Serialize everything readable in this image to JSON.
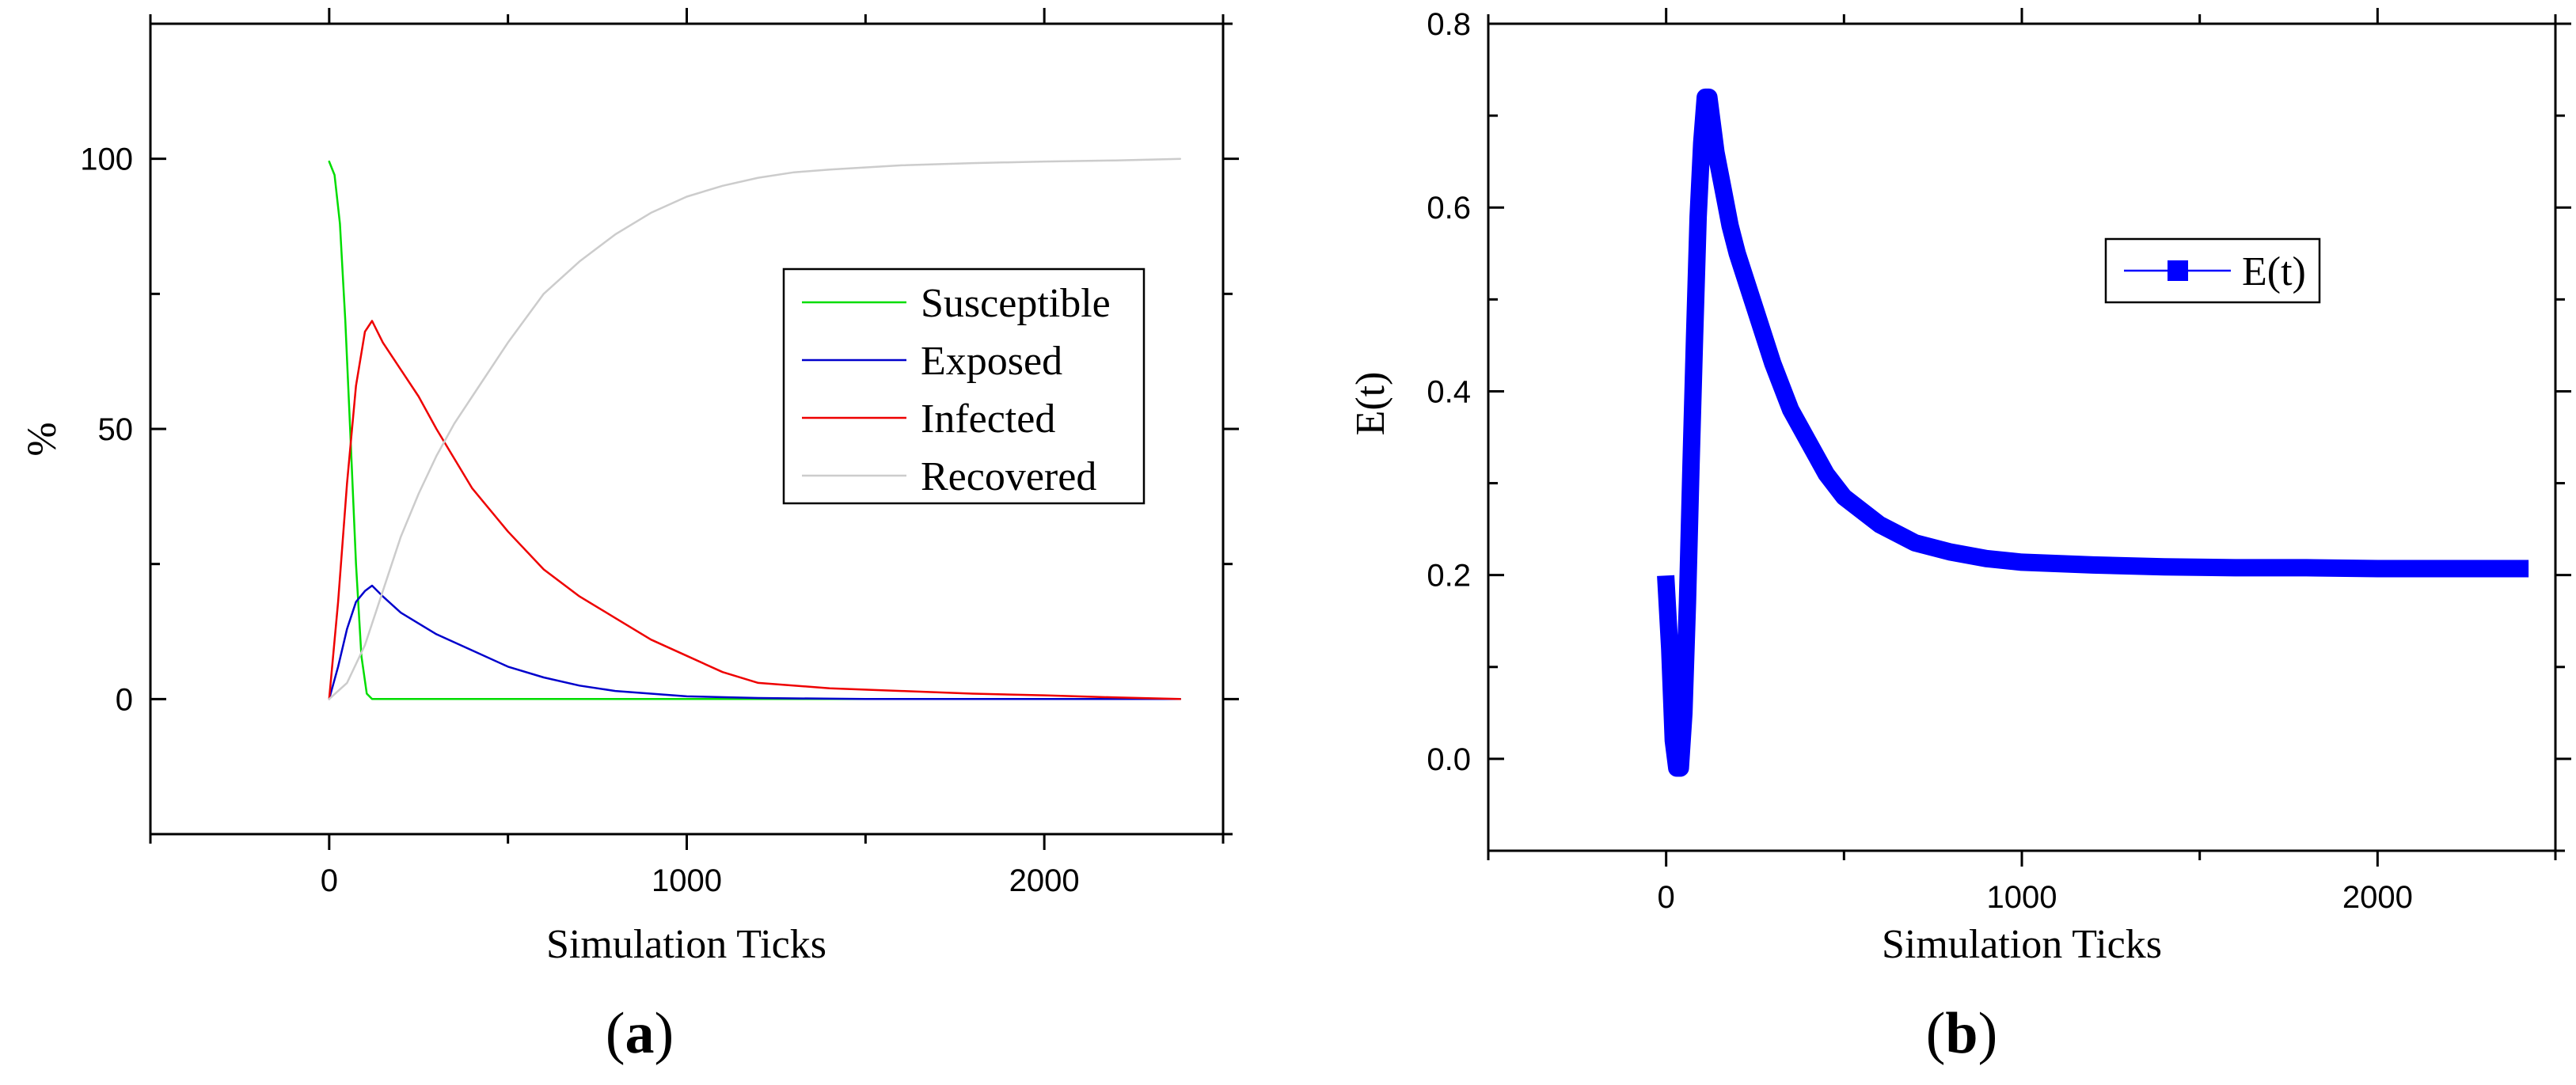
{
  "chart_data": [
    {
      "id": "a",
      "panel_label": "a",
      "type": "line",
      "xlabel": "Simulation Ticks",
      "ylabel": "%",
      "xlim": [
        -500,
        2500
      ],
      "ylim": [
        -25,
        125
      ],
      "xticks": [
        0,
        1000,
        2000
      ],
      "yticks": [
        0,
        50,
        100
      ],
      "xtick_labels": [
        "0",
        "1000",
        "2000"
      ],
      "ytick_labels": [
        "0",
        "50",
        "100"
      ],
      "legend_position": "center-right",
      "series": [
        {
          "name": "Susceptible",
          "color": "#00dd00",
          "x": [
            0,
            15,
            30,
            45,
            60,
            75,
            90,
            105,
            120,
            2380
          ],
          "y": [
            99.5,
            97,
            88,
            70,
            48,
            25,
            8,
            1,
            0,
            0
          ]
        },
        {
          "name": "Exposed",
          "color": "#0000cc",
          "x": [
            0,
            25,
            50,
            75,
            100,
            120,
            150,
            200,
            250,
            300,
            400,
            500,
            600,
            700,
            800,
            900,
            1000,
            1200,
            1500,
            2000,
            2380
          ],
          "y": [
            0,
            6,
            13,
            18,
            20,
            21,
            19,
            16,
            14,
            12,
            9,
            6,
            4,
            2.5,
            1.5,
            1,
            0.5,
            0.2,
            0,
            0,
            0
          ]
        },
        {
          "name": "Infected",
          "color": "#ee0000",
          "x": [
            0,
            25,
            50,
            75,
            100,
            120,
            150,
            200,
            250,
            300,
            400,
            500,
            600,
            700,
            800,
            900,
            1000,
            1100,
            1200,
            1400,
            1600,
            1800,
            2000,
            2200,
            2380
          ],
          "y": [
            0,
            18,
            40,
            58,
            68,
            70,
            66,
            61,
            56,
            50,
            39,
            31,
            24,
            19,
            15,
            11,
            8,
            5,
            3,
            2,
            1.5,
            1,
            0.7,
            0.3,
            0
          ]
        },
        {
          "name": "Recovered",
          "color": "#cccccc",
          "x": [
            0,
            50,
            100,
            150,
            200,
            250,
            300,
            350,
            400,
            500,
            600,
            700,
            800,
            900,
            1000,
            1100,
            1200,
            1300,
            1400,
            1600,
            1800,
            2000,
            2200,
            2380
          ],
          "y": [
            0,
            3,
            10,
            20,
            30,
            38,
            45,
            51,
            56,
            66,
            75,
            81,
            86,
            90,
            93,
            95,
            96.5,
            97.5,
            98,
            98.8,
            99.2,
            99.5,
            99.7,
            100
          ]
        }
      ]
    },
    {
      "id": "b",
      "panel_label": "b",
      "type": "line",
      "xlabel": "Simulation Ticks",
      "ylabel": "E(t)",
      "xlim": [
        -500,
        2500
      ],
      "ylim": [
        -0.1,
        0.8
      ],
      "xticks": [
        0,
        1000,
        2000
      ],
      "yticks": [
        0.0,
        0.2,
        0.4,
        0.6,
        0.8
      ],
      "xtick_labels": [
        "0",
        "1000",
        "2000"
      ],
      "ytick_labels": [
        "0.0",
        "0.2",
        "0.4",
        "0.6",
        "0.8"
      ],
      "legend_position": "top-right",
      "series": [
        {
          "name": "E(t)",
          "color": "#0000ff",
          "x": [
            0,
            10,
            20,
            30,
            40,
            50,
            60,
            70,
            80,
            90,
            100,
            110,
            120,
            130,
            140,
            160,
            180,
            200,
            250,
            300,
            350,
            400,
            450,
            500,
            600,
            700,
            800,
            900,
            1000,
            1200,
            1400,
            1600,
            1800,
            2000,
            2200,
            2400
          ],
          "y": [
            0.19,
            0.12,
            0.02,
            -0.01,
            -0.01,
            0.05,
            0.17,
            0.32,
            0.46,
            0.59,
            0.67,
            0.72,
            0.72,
            0.69,
            0.66,
            0.62,
            0.58,
            0.55,
            0.49,
            0.43,
            0.38,
            0.345,
            0.31,
            0.285,
            0.255,
            0.235,
            0.225,
            0.218,
            0.214,
            0.211,
            0.209,
            0.208,
            0.208,
            0.207,
            0.207,
            0.207
          ]
        }
      ]
    }
  ]
}
